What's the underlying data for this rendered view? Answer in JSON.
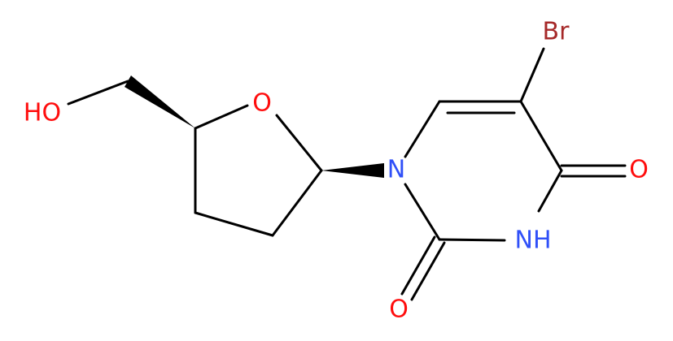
{
  "atoms": [
    {
      "label": "Br"
    },
    {
      "label": "HO"
    },
    {
      "label": "O"
    },
    {
      "label": "N"
    },
    {
      "label": "O"
    },
    {
      "label": "NH"
    },
    {
      "label": "O"
    }
  ]
}
